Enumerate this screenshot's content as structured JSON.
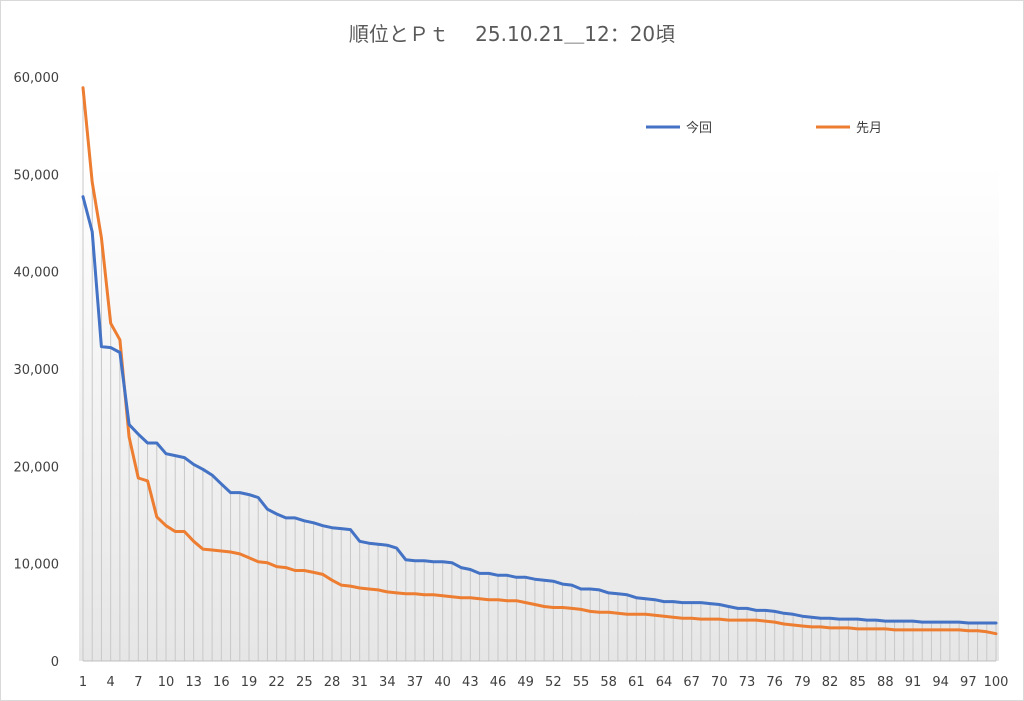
{
  "chart_data": {
    "type": "line",
    "title": "順位とＰｔ　 25.10.21＿12：20頃",
    "xlabel": "",
    "ylabel": "",
    "ylim": [
      0,
      60000
    ],
    "yticks": [
      "0",
      "10,000",
      "20,000",
      "30,000",
      "40,000",
      "50,000",
      "60,000"
    ],
    "x": [
      1,
      2,
      3,
      4,
      5,
      6,
      7,
      8,
      9,
      10,
      11,
      12,
      13,
      14,
      15,
      16,
      17,
      18,
      19,
      20,
      21,
      22,
      23,
      24,
      25,
      26,
      27,
      28,
      29,
      30,
      31,
      32,
      33,
      34,
      35,
      36,
      37,
      38,
      39,
      40,
      41,
      42,
      43,
      44,
      45,
      46,
      47,
      48,
      49,
      50,
      51,
      52,
      53,
      54,
      55,
      56,
      57,
      58,
      59,
      60,
      61,
      62,
      63,
      64,
      65,
      66,
      67,
      68,
      69,
      70,
      71,
      72,
      73,
      74,
      75,
      76,
      77,
      78,
      79,
      80,
      81,
      82,
      83,
      84,
      85,
      86,
      87,
      88,
      89,
      90,
      91,
      92,
      93,
      94,
      95,
      96,
      97,
      98,
      99,
      100
    ],
    "xticks": [
      "1",
      "4",
      "7",
      "10",
      "13",
      "16",
      "19",
      "22",
      "25",
      "28",
      "31",
      "34",
      "37",
      "40",
      "43",
      "46",
      "49",
      "52",
      "55",
      "58",
      "61",
      "64",
      "67",
      "70",
      "73",
      "76",
      "79",
      "82",
      "85",
      "88",
      "91",
      "94",
      "97",
      "100"
    ],
    "grid": false,
    "drop_lines": true,
    "legend_position": "top-right",
    "series": [
      {
        "name": "今回",
        "color": "#4472C4",
        "values": [
          47700,
          44100,
          32300,
          32200,
          31700,
          24300,
          23300,
          22400,
          22400,
          21300,
          21100,
          20900,
          20200,
          19700,
          19100,
          18200,
          17300,
          17300,
          17100,
          16800,
          15600,
          15100,
          14700,
          14700,
          14400,
          14200,
          13900,
          13700,
          13600,
          13500,
          12300,
          12100,
          12000,
          11900,
          11600,
          10400,
          10300,
          10300,
          10200,
          10200,
          10100,
          9600,
          9400,
          9000,
          9000,
          8800,
          8800,
          8600,
          8600,
          8400,
          8300,
          8200,
          7900,
          7800,
          7400,
          7400,
          7300,
          7000,
          6900,
          6800,
          6500,
          6400,
          6300,
          6100,
          6100,
          6000,
          6000,
          6000,
          5900,
          5800,
          5600,
          5400,
          5400,
          5200,
          5200,
          5100,
          4900,
          4800,
          4600,
          4500,
          4400,
          4400,
          4300,
          4300,
          4300,
          4200,
          4200,
          4100,
          4100,
          4100,
          4100,
          4000,
          4000,
          4000,
          4000,
          4000,
          3900,
          3900,
          3900,
          3900
        ]
      },
      {
        "name": "先月",
        "color": "#ED7D31",
        "values": [
          58900,
          49200,
          43500,
          34700,
          33000,
          23000,
          18800,
          18500,
          14800,
          13900,
          13300,
          13300,
          12300,
          11500,
          11400,
          11300,
          11200,
          11000,
          10600,
          10200,
          10100,
          9700,
          9600,
          9300,
          9300,
          9100,
          8900,
          8300,
          7800,
          7700,
          7500,
          7400,
          7300,
          7100,
          7000,
          6900,
          6900,
          6800,
          6800,
          6700,
          6600,
          6500,
          6500,
          6400,
          6300,
          6300,
          6200,
          6200,
          6000,
          5800,
          5600,
          5500,
          5500,
          5400,
          5300,
          5100,
          5000,
          5000,
          4900,
          4800,
          4800,
          4800,
          4700,
          4600,
          4500,
          4400,
          4400,
          4300,
          4300,
          4300,
          4200,
          4200,
          4200,
          4200,
          4100,
          4000,
          3800,
          3700,
          3600,
          3500,
          3500,
          3400,
          3400,
          3400,
          3300,
          3300,
          3300,
          3300,
          3200,
          3200,
          3200,
          3200,
          3200,
          3200,
          3200,
          3200,
          3100,
          3100,
          3000,
          2800
        ]
      }
    ]
  }
}
